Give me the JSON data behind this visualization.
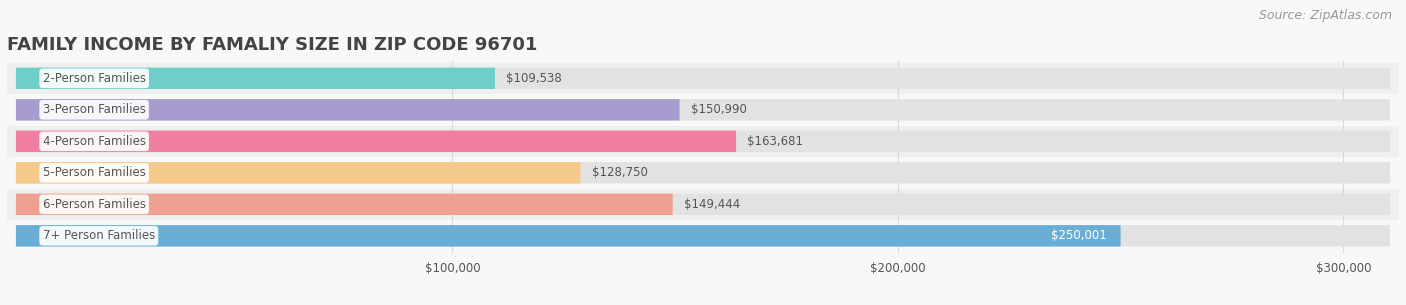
{
  "title": "FAMILY INCOME BY FAMALIY SIZE IN ZIP CODE 96701",
  "source": "Source: ZipAtlas.com",
  "categories": [
    "2-Person Families",
    "3-Person Families",
    "4-Person Families",
    "5-Person Families",
    "6-Person Families",
    "7+ Person Families"
  ],
  "values": [
    109538,
    150990,
    163681,
    128750,
    149444,
    250001
  ],
  "bar_colors": [
    "#6ececa",
    "#a89cce",
    "#f07ea0",
    "#f5c98a",
    "#f0a090",
    "#6aaed6"
  ],
  "value_labels": [
    "$109,538",
    "$150,990",
    "$163,681",
    "$128,750",
    "$149,444",
    "$250,001"
  ],
  "xlim_min": 0,
  "xlim_max": 312500,
  "xticks": [
    100000,
    200000,
    300000
  ],
  "xtick_labels": [
    "$100,000",
    "$200,000",
    "$300,000"
  ],
  "title_fontsize": 13,
  "label_fontsize": 8.5,
  "value_fontsize": 8.5,
  "source_fontsize": 9,
  "bg_color": "#f8f8f8",
  "row_bg_even": "#efefef",
  "row_bg_odd": "#f8f8f8",
  "bar_bg_color": "#e2e2e2",
  "label_text_color": "#555555",
  "value_text_color": "#555555",
  "title_color": "#444444",
  "source_color": "#999999",
  "grid_color": "#d8d8d8"
}
